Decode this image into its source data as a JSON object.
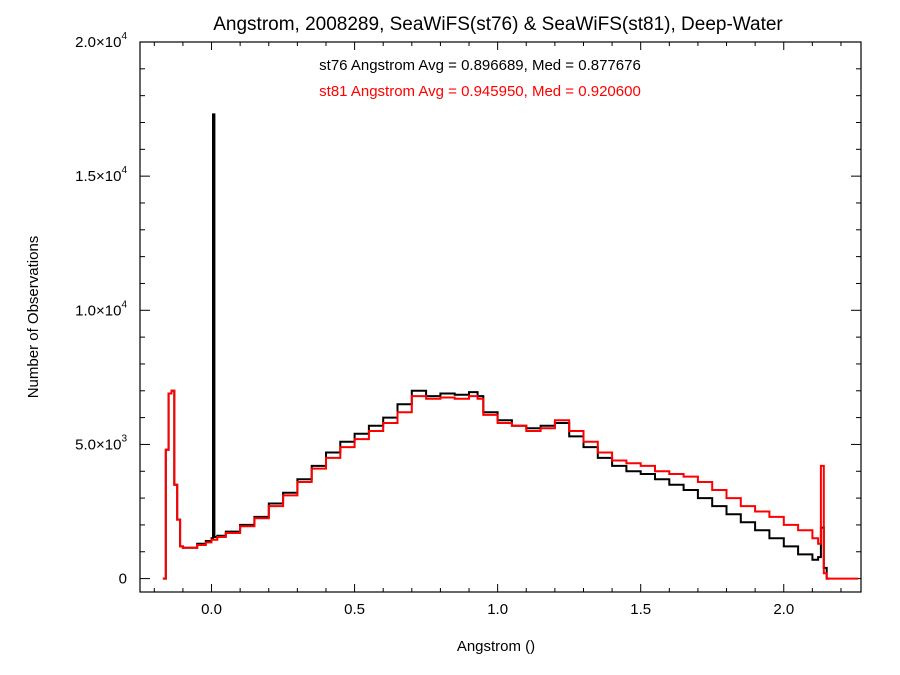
{
  "chart_data": {
    "type": "line",
    "title": "Angstrom, 2008289, SeaWiFS(st76) & SeaWiFS(st81), Deep-Water",
    "xlabel": "Angstrom ()",
    "ylabel": "Number of Observations",
    "xlim": [
      -0.25,
      2.27
    ],
    "ylim": [
      -500,
      20000
    ],
    "x_ticks": [
      {
        "value": 0.0,
        "label": "0.0"
      },
      {
        "value": 0.5,
        "label": "0.5"
      },
      {
        "value": 1.0,
        "label": "1.0"
      },
      {
        "value": 1.5,
        "label": "1.5"
      },
      {
        "value": 2.0,
        "label": "2.0"
      }
    ],
    "y_ticks": [
      {
        "value": 0,
        "mant": "0",
        "exp": ""
      },
      {
        "value": 5000,
        "mant": "5.0×10",
        "exp": "3"
      },
      {
        "value": 10000,
        "mant": "1.0×10",
        "exp": "4"
      },
      {
        "value": 15000,
        "mant": "1.5×10",
        "exp": "4"
      },
      {
        "value": 20000,
        "mant": "2.0×10",
        "exp": "4"
      }
    ],
    "annotations": [
      "st76 Angstrom Avg = 0.896689, Med = 0.877676",
      "st81 Angstrom Avg = 0.945950, Med = 0.920600"
    ],
    "grid": false,
    "series": [
      {
        "color": "#000000",
        "x": [
          -0.17,
          -0.16,
          -0.15,
          -0.14,
          -0.13,
          -0.12,
          -0.11,
          -0.1,
          -0.05,
          -0.02,
          0.0,
          0.005,
          0.01,
          0.02,
          0.05,
          0.1,
          0.15,
          0.2,
          0.25,
          0.3,
          0.35,
          0.4,
          0.45,
          0.5,
          0.55,
          0.6,
          0.65,
          0.7,
          0.75,
          0.8,
          0.85,
          0.9,
          0.93,
          0.95,
          1.0,
          1.05,
          1.1,
          1.15,
          1.2,
          1.25,
          1.3,
          1.35,
          1.4,
          1.45,
          1.5,
          1.55,
          1.6,
          1.65,
          1.7,
          1.75,
          1.8,
          1.85,
          1.9,
          1.95,
          2.0,
          2.05,
          2.1,
          2.12,
          2.13,
          2.14,
          2.15
        ],
        "y": [
          0,
          4800,
          6900,
          7000,
          3500,
          2200,
          1200,
          1150,
          1300,
          1400,
          1500,
          17300,
          1550,
          1600,
          1750,
          2000,
          2300,
          2800,
          3200,
          3700,
          4200,
          4700,
          5100,
          5400,
          5700,
          6000,
          6500,
          7000,
          6800,
          6900,
          6850,
          6950,
          6800,
          6200,
          5900,
          5700,
          5600,
          5700,
          5800,
          5300,
          4900,
          4500,
          4200,
          4000,
          3900,
          3700,
          3500,
          3300,
          3000,
          2700,
          2400,
          2100,
          1800,
          1500,
          1200,
          900,
          700,
          800,
          1900,
          400,
          0
        ]
      },
      {
        "color": "#ff0000",
        "x": [
          -0.17,
          -0.16,
          -0.15,
          -0.14,
          -0.13,
          -0.12,
          -0.11,
          -0.1,
          -0.05,
          -0.02,
          0.0,
          0.02,
          0.05,
          0.1,
          0.15,
          0.2,
          0.25,
          0.3,
          0.35,
          0.4,
          0.45,
          0.5,
          0.55,
          0.6,
          0.65,
          0.7,
          0.75,
          0.8,
          0.85,
          0.9,
          0.93,
          0.95,
          1.0,
          1.05,
          1.1,
          1.15,
          1.2,
          1.25,
          1.3,
          1.35,
          1.4,
          1.45,
          1.5,
          1.55,
          1.6,
          1.65,
          1.7,
          1.75,
          1.8,
          1.85,
          1.9,
          1.95,
          2.0,
          2.05,
          2.1,
          2.12,
          2.13,
          2.14,
          2.15,
          2.25
        ],
        "y": [
          0,
          4800,
          6900,
          7000,
          3500,
          2200,
          1200,
          1150,
          1250,
          1350,
          1450,
          1550,
          1700,
          1950,
          2250,
          2700,
          3100,
          3600,
          4100,
          4500,
          4900,
          5200,
          5500,
          5800,
          6200,
          6800,
          6700,
          6750,
          6700,
          6800,
          6700,
          6100,
          5800,
          5700,
          5500,
          5600,
          5900,
          5500,
          5100,
          4700,
          4400,
          4300,
          4200,
          4000,
          3900,
          3800,
          3600,
          3300,
          3000,
          2700,
          2500,
          2300,
          2000,
          1800,
          1500,
          1300,
          4200,
          200,
          0,
          0
        ]
      }
    ]
  }
}
